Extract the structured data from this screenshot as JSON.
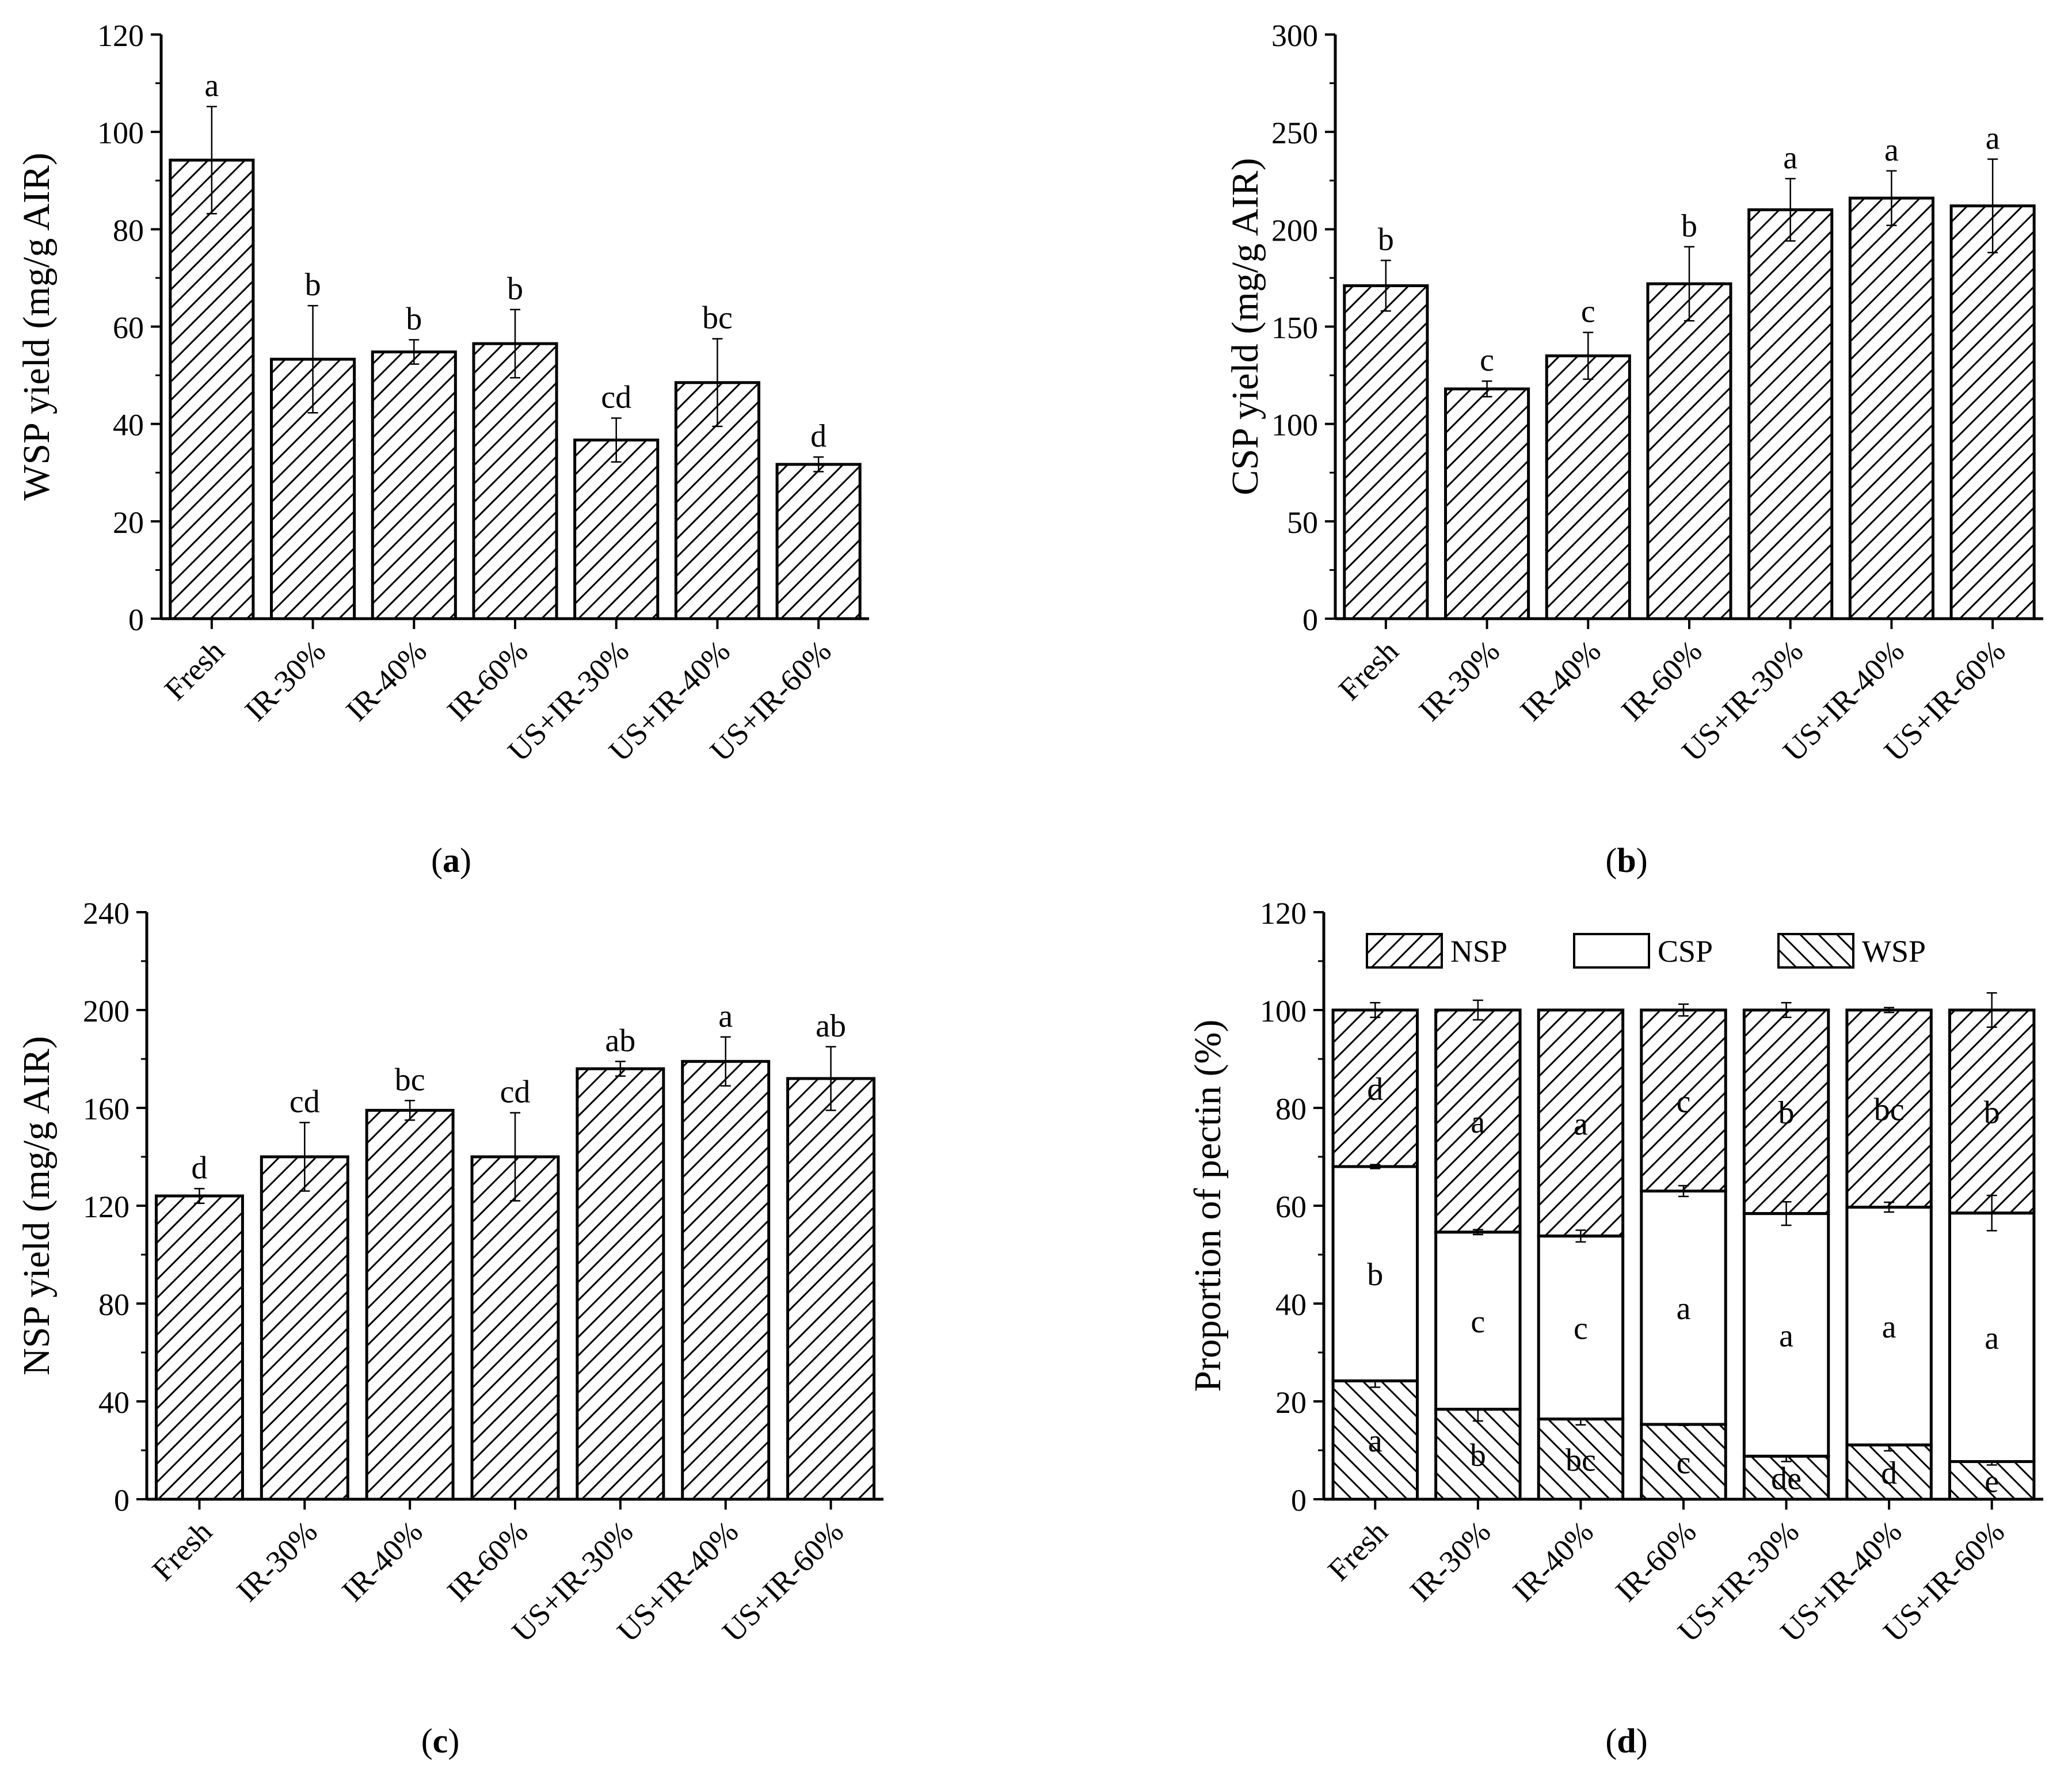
{
  "figure": {
    "panels": [
      "a",
      "b",
      "c",
      "d"
    ]
  },
  "chart_data": [
    {
      "type": "bar",
      "panel_label": "a",
      "ylabel": "WSP yield (mg/g AIR)",
      "categories": [
        "Fresh",
        "IR-30%",
        "IR-40%",
        "IR-60%",
        "US+IR-30%",
        "US+IR-40%",
        "US+IR-60%"
      ],
      "values": [
        94.2,
        53.3,
        54.8,
        56.5,
        36.7,
        48.5,
        31.7
      ],
      "errors": [
        11,
        11,
        2.5,
        7,
        4.5,
        9,
        1.5
      ],
      "letters": [
        "a",
        "b",
        "b",
        "b",
        "cd",
        "bc",
        "d"
      ],
      "ylim": [
        0,
        120
      ],
      "yticks": [
        0,
        20,
        40,
        60,
        80,
        100,
        120
      ],
      "pattern": "hatch-forward"
    },
    {
      "type": "bar",
      "panel_label": "b",
      "ylabel": "CSP yield (mg/g AIR)",
      "categories": [
        "Fresh",
        "IR-30%",
        "IR-40%",
        "IR-60%",
        "US+IR-30%",
        "US+IR-40%",
        "US+IR-60%"
      ],
      "values": [
        171,
        118,
        135,
        172,
        210,
        216,
        212
      ],
      "errors": [
        13,
        4,
        12,
        19,
        16,
        14,
        24
      ],
      "letters": [
        "b",
        "c",
        "c",
        "b",
        "a",
        "a",
        "a"
      ],
      "ylim": [
        0,
        300
      ],
      "yticks": [
        0,
        50,
        100,
        150,
        200,
        250,
        300
      ],
      "pattern": "hatch-forward"
    },
    {
      "type": "bar",
      "panel_label": "c",
      "ylabel": "NSP yield (mg/g AIR)",
      "categories": [
        "Fresh",
        "IR-30%",
        "IR-40%",
        "IR-60%",
        "US+IR-30%",
        "US+IR-40%",
        "US+IR-60%"
      ],
      "values": [
        124,
        140,
        159,
        140,
        176,
        179,
        172
      ],
      "errors": [
        3,
        14,
        4,
        18,
        3,
        10,
        13
      ],
      "letters": [
        "d",
        "cd",
        "bc",
        "cd",
        "ab",
        "a",
        "ab"
      ],
      "ylim": [
        0,
        240
      ],
      "yticks": [
        0,
        40,
        80,
        120,
        160,
        200,
        240
      ],
      "pattern": "hatch-forward"
    },
    {
      "type": "stacked-bar",
      "panel_label": "d",
      "ylabel": "Proportion of pectin (%)",
      "categories": [
        "Fresh",
        "IR-30%",
        "IR-40%",
        "IR-60%",
        "US+IR-30%",
        "US+IR-40%",
        "US+IR-60%"
      ],
      "ylim": [
        0,
        120
      ],
      "yticks": [
        0,
        20,
        40,
        60,
        80,
        100,
        120
      ],
      "legend": [
        "NSP",
        "CSP",
        "WSP"
      ],
      "series": [
        {
          "name": "WSP",
          "pattern": "hatch-back",
          "values": [
            24.2,
            18.4,
            16.4,
            15.3,
            8.8,
            11.1,
            7.7
          ],
          "errors": [
            1.3,
            2.4,
            1.2,
            0.2,
            1.1,
            1.2,
            0.7
          ],
          "letters": [
            "a",
            "b",
            "bc",
            "c",
            "de",
            "d",
            "e"
          ]
        },
        {
          "name": "CSP",
          "pattern": "none",
          "values": [
            43.8,
            36.2,
            37.4,
            47.7,
            49.6,
            48.6,
            50.8
          ],
          "errors": [
            0.4,
            0.5,
            1.2,
            1.1,
            2.4,
            1.0,
            3.6
          ],
          "letters": [
            "b",
            "c",
            "c",
            "a",
            "a",
            "a",
            "a"
          ]
        },
        {
          "name": "NSP",
          "pattern": "hatch-forward",
          "values": [
            32.0,
            45.4,
            46.2,
            37.0,
            41.6,
            40.3,
            41.5
          ],
          "errors": [
            1.5,
            2.0,
            0,
            1.2,
            1.5,
            0.5,
            3.5
          ],
          "letters": [
            "d",
            "a",
            "a",
            "c",
            "b",
            "bc",
            "b"
          ]
        }
      ]
    }
  ]
}
